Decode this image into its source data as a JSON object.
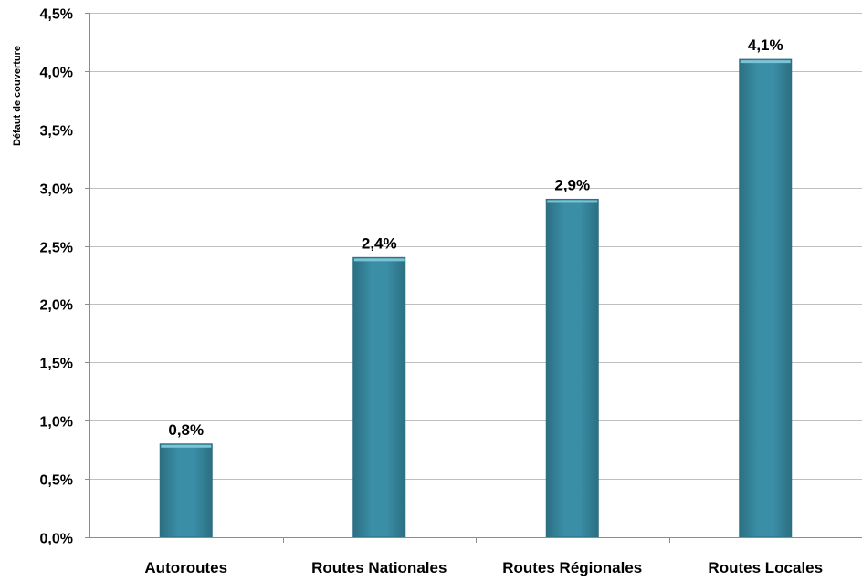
{
  "chart_data": {
    "type": "bar",
    "title": "",
    "xlabel": "",
    "ylabel": "Défaut de couverture",
    "categories": [
      "Autoroutes",
      "Routes Nationales",
      "Routes Régionales",
      "Routes Locales"
    ],
    "values": [
      0.8,
      2.4,
      2.9,
      4.1
    ],
    "value_labels": [
      "0,8%",
      "2,4%",
      "2,9%",
      "4,1%"
    ],
    "ylim": [
      0,
      4.5
    ],
    "yticks": [
      0,
      0.5,
      1.0,
      1.5,
      2.0,
      2.5,
      3.0,
      3.5,
      4.0,
      4.5
    ],
    "ytick_labels": [
      "0,0%",
      "0,5%",
      "1,0%",
      "1,5%",
      "2,0%",
      "2,5%",
      "3,0%",
      "3,5%",
      "4,0%",
      "4,5%"
    ],
    "grid": true,
    "legend": "none",
    "colors": {
      "bar": "#3a8ea6",
      "bar_highlight": "#7cc3d6",
      "bar_edge": "#2c6f82",
      "grid": "#bfbfbf",
      "axis": "#8c8c8c"
    }
  }
}
